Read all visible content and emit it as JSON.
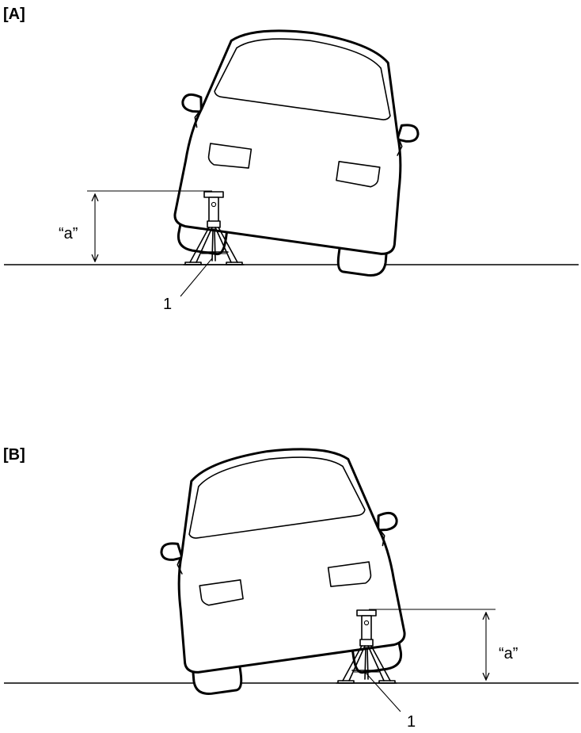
{
  "figure": {
    "panels": [
      {
        "label": "[A]",
        "dimension_label": "“a”",
        "part_callout": "1"
      },
      {
        "label": "[B]",
        "dimension_label": "“a”",
        "part_callout": "1"
      }
    ],
    "colors": {
      "line": "#000000",
      "background": "#ffffff"
    }
  }
}
